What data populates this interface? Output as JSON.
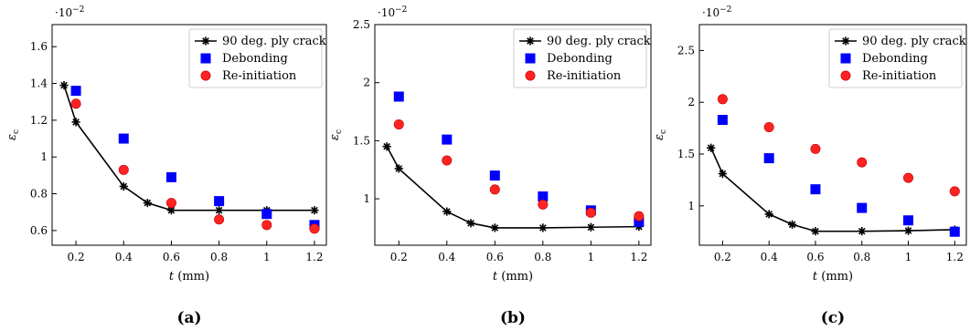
{
  "chart_data": [
    {
      "type": "scatter",
      "panel_label": "(a)",
      "xlabel": "t",
      "xunit": "(mm)",
      "ylabel": "εc",
      "exponent_label": "·10",
      "exponent_power": "−2",
      "xlim": [
        0.1,
        1.25
      ],
      "ylim": [
        0.52,
        1.72
      ],
      "xticks": [
        0.2,
        0.4,
        0.6,
        0.8,
        1.0,
        1.2
      ],
      "xtick_labels": [
        "0.2",
        "0.4",
        "0.6",
        "0.8",
        "1",
        "1.2"
      ],
      "yticks": [
        0.6,
        0.8,
        1.0,
        1.2,
        1.4,
        1.6
      ],
      "ytick_labels": [
        "0.6",
        "0.8",
        "1",
        "1.2",
        "1.4",
        "1.6"
      ],
      "legend_position": "top-right",
      "series": [
        {
          "name": "90 deg. ply crack",
          "kind": "line-star",
          "color": "#000000",
          "x": [
            0.15,
            0.2,
            0.4,
            0.5,
            0.6,
            0.8,
            1.0,
            1.2
          ],
          "y": [
            1.39,
            1.19,
            0.84,
            0.75,
            0.71,
            0.71,
            0.71,
            0.71
          ]
        },
        {
          "name": "Debonding",
          "kind": "square",
          "color": "#0000ff",
          "x": [
            0.2,
            0.4,
            0.6,
            0.8,
            1.0,
            1.2
          ],
          "y": [
            1.36,
            1.1,
            0.89,
            0.76,
            0.69,
            0.63
          ]
        },
        {
          "name": "Re-initiation",
          "kind": "circle",
          "color": "#ff2222",
          "x": [
            0.2,
            0.4,
            0.6,
            0.8,
            1.0,
            1.2
          ],
          "y": [
            1.29,
            0.93,
            0.75,
            0.66,
            0.63,
            0.61
          ]
        }
      ]
    },
    {
      "type": "scatter",
      "panel_label": "(b)",
      "xlabel": "t",
      "xunit": "(mm)",
      "ylabel": "εc",
      "exponent_label": "·10",
      "exponent_power": "−2",
      "xlim": [
        0.1,
        1.25
      ],
      "ylim": [
        0.6,
        2.5
      ],
      "xticks": [
        0.2,
        0.4,
        0.6,
        0.8,
        1.0,
        1.2
      ],
      "xtick_labels": [
        "0.2",
        "0.4",
        "0.6",
        "0.8",
        "1",
        "1.2"
      ],
      "yticks": [
        1.0,
        1.5,
        2.0,
        2.5
      ],
      "ytick_labels": [
        "1",
        "1.5",
        "2",
        "2.5"
      ],
      "legend_position": "top-right",
      "series": [
        {
          "name": "90 deg. ply crack",
          "kind": "line-star",
          "color": "#000000",
          "x": [
            0.15,
            0.2,
            0.4,
            0.5,
            0.6,
            0.8,
            1.0,
            1.2
          ],
          "y": [
            1.45,
            1.26,
            0.89,
            0.79,
            0.75,
            0.75,
            0.755,
            0.76
          ]
        },
        {
          "name": "Debonding",
          "kind": "square",
          "color": "#0000ff",
          "x": [
            0.2,
            0.4,
            0.6,
            0.8,
            1.0,
            1.2
          ],
          "y": [
            1.88,
            1.51,
            1.2,
            1.02,
            0.9,
            0.8
          ]
        },
        {
          "name": "Re-initiation",
          "kind": "circle",
          "color": "#ff2222",
          "x": [
            0.2,
            0.4,
            0.6,
            0.8,
            1.0,
            1.2
          ],
          "y": [
            1.64,
            1.33,
            1.08,
            0.95,
            0.88,
            0.85
          ]
        }
      ]
    },
    {
      "type": "scatter",
      "panel_label": "(c)",
      "xlabel": "t",
      "xunit": "(mm)",
      "ylabel": "εc",
      "exponent_label": "·10",
      "exponent_power": "−2",
      "xlim": [
        0.1,
        1.25
      ],
      "ylim": [
        0.62,
        2.75
      ],
      "xticks": [
        0.2,
        0.4,
        0.6,
        0.8,
        1.0,
        1.2
      ],
      "xtick_labels": [
        "0.2",
        "0.4",
        "0.6",
        "0.8",
        "1",
        "1.2"
      ],
      "yticks": [
        1.0,
        1.5,
        2.0,
        2.5
      ],
      "ytick_labels": [
        "1",
        "1.5",
        "2",
        "2.5"
      ],
      "legend_position": "top-right",
      "series": [
        {
          "name": "90 deg. ply crack",
          "kind": "line-star",
          "color": "#000000",
          "x": [
            0.15,
            0.2,
            0.4,
            0.5,
            0.6,
            0.8,
            1.0,
            1.2
          ],
          "y": [
            1.56,
            1.31,
            0.92,
            0.82,
            0.755,
            0.755,
            0.76,
            0.77
          ]
        },
        {
          "name": "Debonding",
          "kind": "square",
          "color": "#0000ff",
          "x": [
            0.2,
            0.4,
            0.6,
            0.8,
            1.0,
            1.2
          ],
          "y": [
            1.83,
            1.46,
            1.16,
            0.98,
            0.86,
            0.75
          ]
        },
        {
          "name": "Re-initiation",
          "kind": "circle",
          "color": "#ff2222",
          "x": [
            0.2,
            0.4,
            0.6,
            0.8,
            1.0,
            1.2
          ],
          "y": [
            2.03,
            1.76,
            1.55,
            1.42,
            1.27,
            1.14
          ]
        }
      ]
    }
  ]
}
